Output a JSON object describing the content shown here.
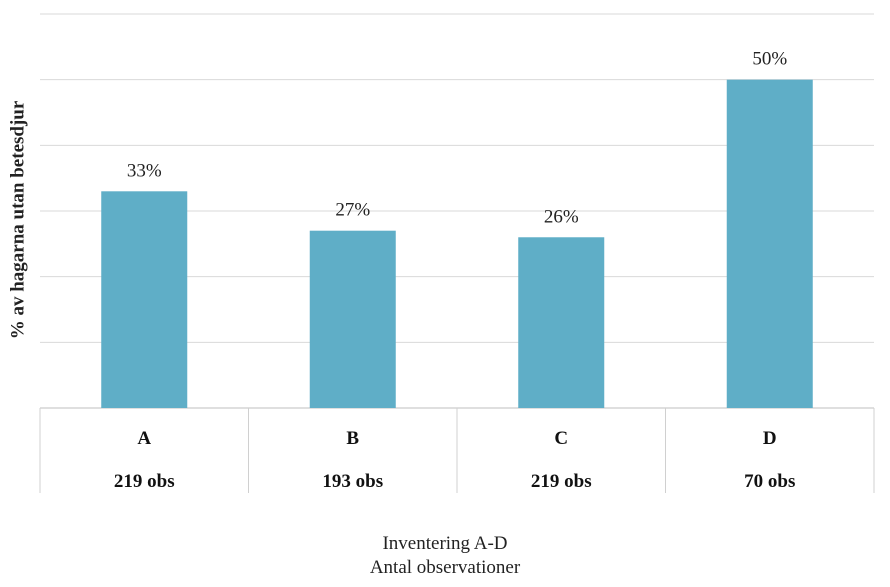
{
  "chart_data": {
    "type": "bar",
    "title": "",
    "ylabel": "% av hagarna utan betesdjur",
    "xlabel_lines": [
      "Inventering A-D",
      "Antal observationer"
    ],
    "categories": [
      "A",
      "B",
      "C",
      "D"
    ],
    "sublabels": [
      "219 obs",
      "193 obs",
      "219 obs",
      "70 obs"
    ],
    "values": [
      33,
      27,
      26,
      50
    ],
    "data_labels": [
      "33%",
      "27%",
      "26%",
      "50%"
    ],
    "ylim": [
      0,
      60
    ],
    "grid": true,
    "bar_color": "#5faec7",
    "grid_color": "#d9d9d9"
  }
}
